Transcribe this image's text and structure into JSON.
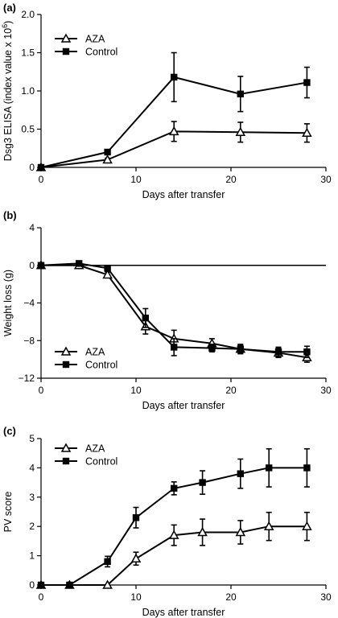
{
  "chart_data": [
    {
      "panel": "(a)",
      "type": "line",
      "xlabel": "Days after transfer",
      "ylabel": "Dsg3 ELISA (index value x 10",
      "ylabel_sup": "6",
      "ylabel_end": ")",
      "xlim": [
        0,
        30
      ],
      "ylim": [
        0,
        2.0
      ],
      "xticks": [
        0,
        10,
        20,
        30
      ],
      "yticks": [
        "0",
        "0.5",
        "1.0",
        "1.5",
        "2.0"
      ],
      "ytick_values": [
        0,
        0.5,
        1.0,
        1.5,
        2.0
      ],
      "grid": false,
      "legend": "top-left",
      "series": [
        {
          "name": "AZA",
          "marker": "open-triangle",
          "x": [
            0,
            7,
            14,
            21,
            28
          ],
          "y": [
            0.0,
            0.1,
            0.47,
            0.46,
            0.45
          ],
          "err": [
            0,
            0.02,
            0.13,
            0.13,
            0.12
          ]
        },
        {
          "name": "Control",
          "marker": "filled-square",
          "x": [
            0,
            7,
            14,
            21,
            28
          ],
          "y": [
            0.0,
            0.2,
            1.18,
            0.96,
            1.11
          ],
          "err": [
            0,
            0.02,
            0.32,
            0.23,
            0.2
          ]
        }
      ]
    },
    {
      "panel": "(b)",
      "type": "line",
      "xlabel": "Days after transfer",
      "ylabel": "Weight loss (g)",
      "xlim": [
        0,
        30
      ],
      "ylim": [
        -12,
        4
      ],
      "xticks": [
        0,
        10,
        20,
        30
      ],
      "yticks": [
        "4",
        "0",
        "−4",
        "−8",
        "−12"
      ],
      "ytick_values": [
        4,
        0,
        -4,
        -8,
        -12
      ],
      "grid": false,
      "legend": "bottom-left",
      "reference_line_y": 0,
      "series": [
        {
          "name": "AZA",
          "marker": "open-triangle",
          "x": [
            0,
            4,
            7,
            11,
            14,
            18,
            21,
            25,
            28
          ],
          "y": [
            0.0,
            0.0,
            -1.0,
            -6.5,
            -7.8,
            -8.3,
            -8.9,
            -9.3,
            -9.8
          ],
          "err": [
            0,
            0.2,
            0.3,
            0.8,
            0.9,
            0.5,
            0.4,
            0.5,
            0.5
          ]
        },
        {
          "name": "Control",
          "marker": "filled-square",
          "x": [
            0,
            4,
            7,
            11,
            14,
            18,
            21,
            25,
            28
          ],
          "y": [
            0.0,
            0.2,
            -0.3,
            -5.6,
            -8.7,
            -8.8,
            -8.9,
            -9.2,
            -9.2
          ],
          "err": [
            0,
            0.2,
            0.3,
            1.0,
            0.9,
            0.4,
            0.5,
            0.5,
            0.6
          ]
        }
      ]
    },
    {
      "panel": "(c)",
      "type": "line",
      "xlabel": "Days after transfer",
      "ylabel": "PV score",
      "xlim": [
        0,
        30
      ],
      "ylim": [
        0,
        5
      ],
      "xticks": [
        0,
        10,
        20,
        30
      ],
      "yticks": [
        "0",
        "1",
        "2",
        "3",
        "4",
        "5"
      ],
      "ytick_values": [
        0,
        1,
        2,
        3,
        4,
        5
      ],
      "grid": false,
      "legend": "top-left",
      "series": [
        {
          "name": "AZA",
          "marker": "open-triangle",
          "x": [
            0,
            3,
            7,
            10,
            14,
            17,
            21,
            24,
            28
          ],
          "y": [
            0,
            0,
            0,
            0.9,
            1.7,
            1.8,
            1.8,
            2.0,
            2.0
          ],
          "err": [
            0,
            0,
            0,
            0.22,
            0.35,
            0.45,
            0.4,
            0.48,
            0.48
          ]
        },
        {
          "name": "Control",
          "marker": "filled-square",
          "x": [
            0,
            3,
            7,
            10,
            14,
            17,
            21,
            24,
            28
          ],
          "y": [
            0,
            0,
            0.8,
            2.3,
            3.3,
            3.5,
            3.8,
            4.0,
            4.0
          ],
          "err": [
            0,
            0,
            0.18,
            0.35,
            0.22,
            0.4,
            0.5,
            0.65,
            0.65
          ]
        }
      ]
    }
  ]
}
